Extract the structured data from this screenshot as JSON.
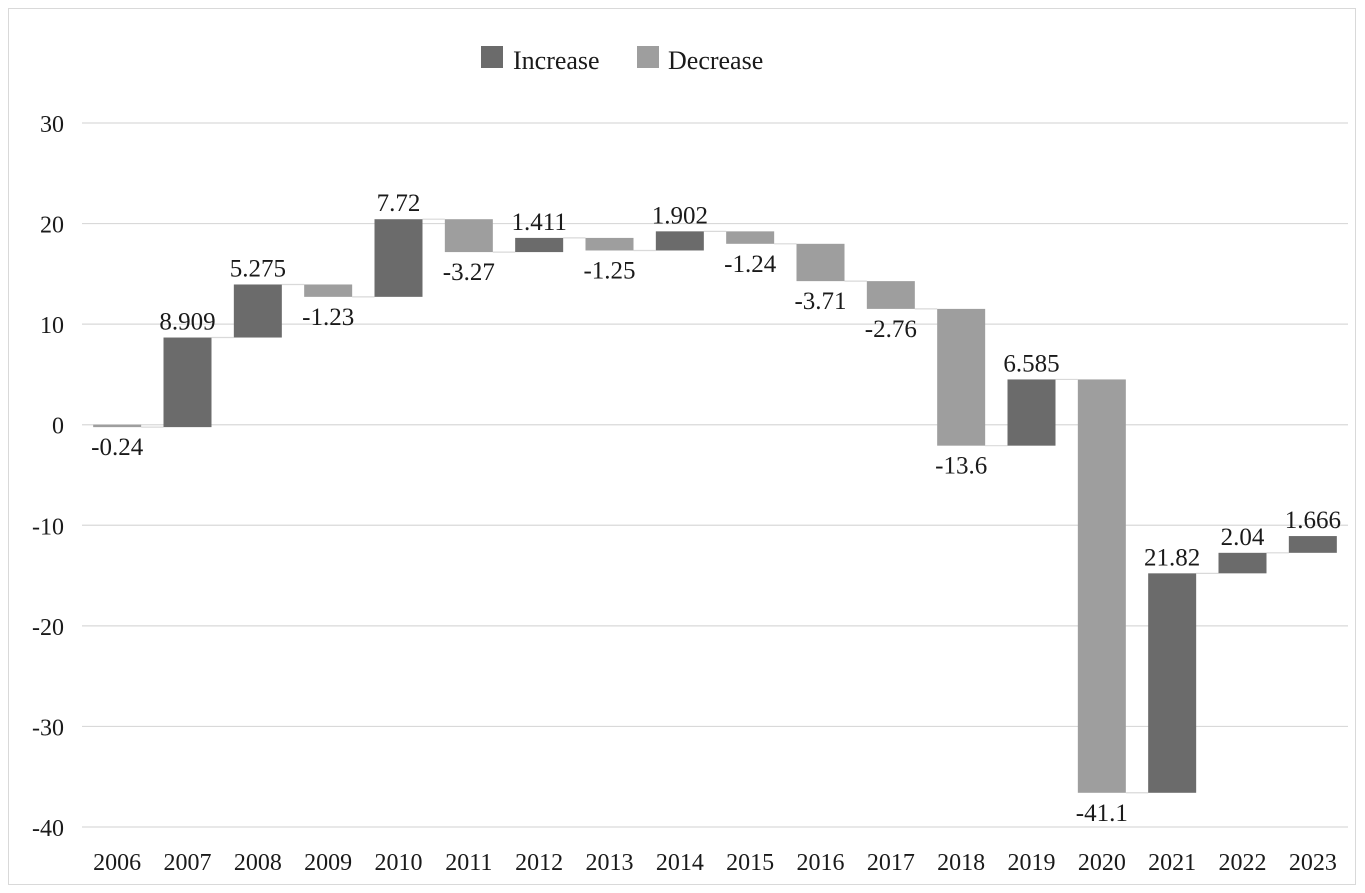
{
  "chart_data": {
    "type": "bar",
    "subtype": "waterfall",
    "title": "",
    "xlabel": "",
    "ylabel": "",
    "ylim": [
      -40,
      30
    ],
    "yticks": [
      30,
      20,
      10,
      0,
      -10,
      -20,
      -30,
      -40
    ],
    "grid": true,
    "legend": {
      "position": "top-center",
      "entries": [
        {
          "name": "Increase",
          "color": "#6b6b6b"
        },
        {
          "name": "Decrease",
          "color": "#9e9e9e"
        }
      ]
    },
    "categories": [
      "2006",
      "2007",
      "2008",
      "2009",
      "2010",
      "2011",
      "2012",
      "2013",
      "2014",
      "2015",
      "2016",
      "2017",
      "2018",
      "2019",
      "2020",
      "2021",
      "2022",
      "2023"
    ],
    "changes": [
      -0.24,
      8.909,
      5.275,
      -1.23,
      7.72,
      -3.27,
      1.411,
      -1.25,
      1.902,
      -1.24,
      -3.71,
      -2.76,
      -13.6,
      6.585,
      -41.1,
      21.82,
      2.04,
      1.666
    ],
    "labels": [
      "-0.24",
      "8.909",
      "5.275",
      "-1.23",
      "7.72",
      "-3.27",
      "1.411",
      "-1.25",
      "1.902",
      "-1.24",
      "-3.71",
      "-2.76",
      "-13.6",
      "6.585",
      "-41.1",
      "21.82",
      "2.04",
      "1.666"
    ],
    "start_value": 0,
    "colors": {
      "increase": "#6b6b6b",
      "decrease": "#9e9e9e",
      "grid": "#d9d9d9",
      "connector": "#d9d9d9"
    }
  }
}
